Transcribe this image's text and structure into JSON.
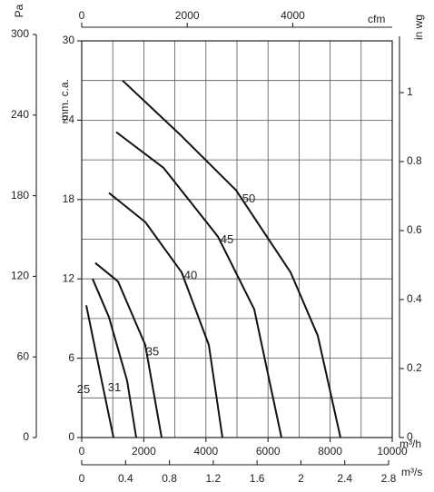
{
  "chart_data": {
    "type": "line",
    "ylabel": "mm. c.a.",
    "ylim": [
      0,
      30
    ],
    "yticks": [
      0,
      6,
      12,
      18,
      24,
      30
    ],
    "ygrid": [
      0,
      3,
      6,
      9,
      12,
      15,
      18,
      21,
      24,
      27,
      30
    ],
    "xlabel": "m³/h",
    "xlim": [
      0,
      10000
    ],
    "xticks": [
      0,
      2000,
      4000,
      6000,
      8000,
      10000
    ],
    "xgrid": [
      0,
      1000,
      2000,
      3000,
      4000,
      5000,
      6000,
      7000,
      8000,
      9000,
      10000
    ],
    "pa_axis": {
      "label": "Pa",
      "lim": [
        0,
        300
      ],
      "ticks": [
        0,
        60,
        120,
        180,
        240,
        300
      ]
    },
    "inwg_axis": {
      "label": "in wg",
      "lim": [
        0,
        1.15
      ],
      "ticks": [
        0,
        0.2,
        0.4,
        0.6,
        0.8,
        1
      ]
    },
    "cfm_axis": {
      "label": "cfm",
      "lim": [
        0,
        5885
      ],
      "ticks": [
        0,
        2000,
        4000
      ]
    },
    "m3s_axis": {
      "label": "m³/s",
      "lim": [
        0,
        2.8
      ],
      "ticks": [
        0,
        0.4,
        0.8,
        1.2,
        1.6,
        2,
        2.4,
        2.8
      ]
    },
    "grid": true,
    "series": [
      {
        "name": "25",
        "color": "#111111",
        "x": [
          146,
          643,
          1023
        ],
        "values": [
          10.0,
          4.3,
          0
        ]
      },
      {
        "name": "31",
        "color": "#111111",
        "x": [
          351,
          877,
          1462,
          1754
        ],
        "values": [
          12.0,
          9.1,
          4.3,
          0
        ]
      },
      {
        "name": "35",
        "color": "#111111",
        "x": [
          439,
          1170,
          2047,
          2573
        ],
        "values": [
          13.2,
          11.8,
          7.0,
          0
        ]
      },
      {
        "name": "40",
        "color": "#111111",
        "x": [
          877,
          2047,
          3216,
          4094,
          4532
        ],
        "values": [
          18.5,
          16.3,
          12.5,
          7.0,
          0
        ]
      },
      {
        "name": "45",
        "color": "#111111",
        "x": [
          1111,
          2632,
          4386,
          5556,
          6433
        ],
        "values": [
          23.1,
          20.4,
          15.2,
          9.7,
          0
        ]
      },
      {
        "name": "50",
        "color": "#111111",
        "x": [
          1316,
          3216,
          4971,
          6725,
          7602,
          8333
        ],
        "values": [
          27.0,
          22.8,
          18.7,
          12.5,
          7.7,
          0
        ]
      }
    ]
  }
}
